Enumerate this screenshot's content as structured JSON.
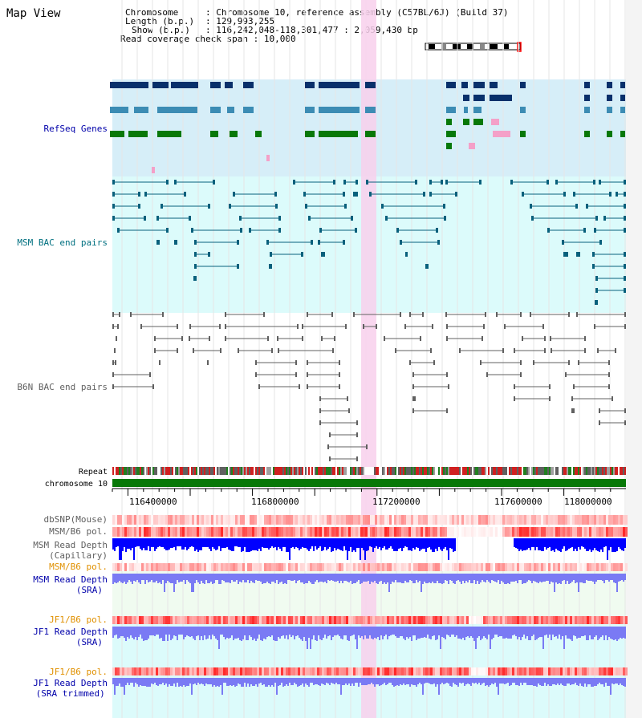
{
  "page_title": "Map View",
  "info": {
    "chromosome_label": "Chromosome",
    "chromosome_value": "Chromosome 10, reference assembly (C57BL/6J) (Build 37)",
    "length_label": "Length (b.p.)",
    "length_value": "129,993,255",
    "show_label": "Show (b.p.)",
    "show_value": "116,242,048-118,301,477 : 2,059,430 bp",
    "coverage_label": "Read coverage check span",
    "coverage_value": "10,000"
  },
  "tracks": {
    "refseq": "RefSeq Genes",
    "msm_bac": "MSM BAC end pairs",
    "b6n_bac": "B6N BAC end pairs",
    "repeat": "Repeat",
    "chromosome": "chromosome 10",
    "dbsnp": "dbSNP(Mouse)",
    "msm_pol": "MSM/B6 pol.",
    "msm_cap_1": "MSM Read Depth",
    "msm_cap_2": "(Capillary)",
    "msm_pol_sra": "MSM/B6 pol.",
    "msm_sra_1": "MSM Read Depth",
    "msm_sra_2": "(SRA)",
    "jf1_pol": "JF1/B6 pol.",
    "jf1_sra_1": "JF1 Read Depth",
    "jf1_sra_2": "(SRA)",
    "jf1_pol_trim": "JF1/B6 pol.",
    "jf1_trim_1": "JF1 Read Depth",
    "jf1_trim_2": "(SRA trimmed)"
  },
  "axis": {
    "ticks": [
      "116400000",
      "116800000",
      "117200000",
      "117600000",
      "118000000"
    ]
  },
  "colors": {
    "refseq_bg": "#d6eef8",
    "msm_bg": "#dcfbfb",
    "depth_bg": "#f0fbf0",
    "highlight": "#f8d0ec",
    "dark_navy": "#08306b",
    "mid_blue": "#3c8cb4",
    "green": "#087808",
    "pink": "#f4a0c8",
    "teal": "#08607c",
    "grey": "#606060",
    "chromosome_bar": "#087808",
    "depth_blue": "#0000ff",
    "depth_light": "#7a7af4",
    "title_blue": "#0000aa",
    "title_teal": "#007080",
    "title_orange": "#e09000"
  }
}
